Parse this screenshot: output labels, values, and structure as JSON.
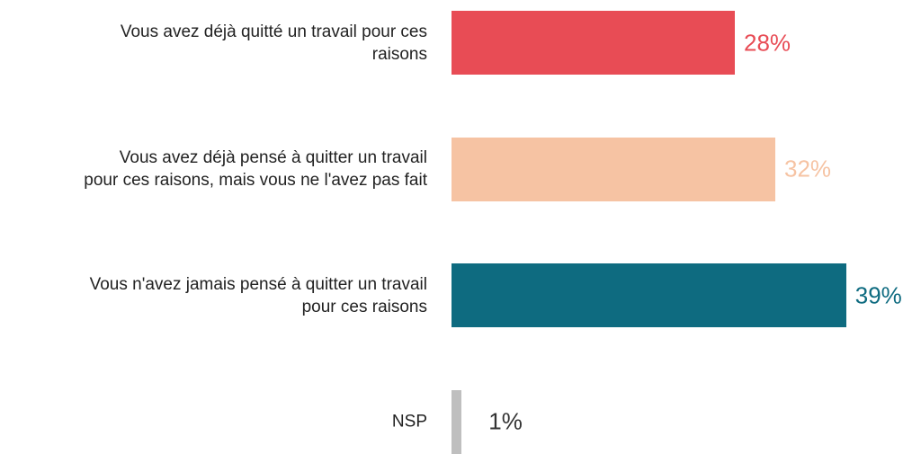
{
  "chart_data": {
    "type": "bar",
    "orientation": "horizontal",
    "categories": [
      "Vous avez déjà quitté un travail pour ces\nraisons",
      "Vous avez déjà pensé à quitter un travail\npour ces raisons, mais vous ne l'avez pas fait",
      "Vous n'avez jamais pensé à quitter un travail\npour ces raisons",
      "NSP"
    ],
    "values": [
      28,
      32,
      39,
      1
    ],
    "value_labels": [
      "28%",
      "32%",
      "39%",
      "1%"
    ],
    "colors": [
      "#e84c55",
      "#f6c3a3",
      "#0e6b80",
      "#bfbfbf"
    ],
    "value_label_colors": [
      "#e84c55",
      "#f6c3a3",
      "#0e6b80",
      "#333333"
    ]
  }
}
